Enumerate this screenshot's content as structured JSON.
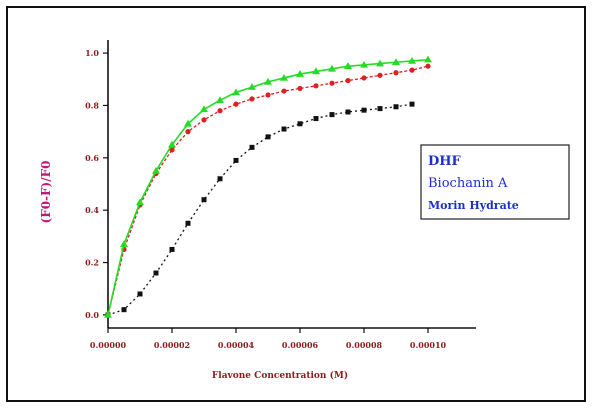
{
  "chart_data": {
    "type": "line",
    "title": "",
    "xlabel": "Flavone Concentration (M)",
    "ylabel": "(F0-F)/F0",
    "x_ticks": [
      "0.00000",
      "0.00002",
      "0.00004",
      "0.00006",
      "0.00008",
      "0.00010"
    ],
    "y_ticks": [
      "0.0",
      "0.2",
      "0.4",
      "0.6",
      "0.8",
      "1.0"
    ],
    "xlim": [
      0,
      0.000115
    ],
    "ylim": [
      -0.05,
      1.05
    ],
    "grid": false,
    "legend_position": "right",
    "series": [
      {
        "name": "DHF",
        "color": "#111111",
        "marker": "square",
        "x": [
          0,
          5e-06,
          1e-05,
          1.5e-05,
          2e-05,
          2.5e-05,
          3e-05,
          3.5e-05,
          4e-05,
          4.5e-05,
          5e-05,
          5.5e-05,
          6e-05,
          6.5e-05,
          7e-05,
          7.5e-05,
          8e-05,
          8.5e-05,
          9e-05,
          9.5e-05
        ],
        "y": [
          0.0,
          0.02,
          0.08,
          0.16,
          0.25,
          0.35,
          0.44,
          0.52,
          0.59,
          0.64,
          0.68,
          0.71,
          0.73,
          0.75,
          0.765,
          0.775,
          0.782,
          0.788,
          0.795,
          0.805
        ]
      },
      {
        "name": "Biochanin A",
        "color": "#e02020",
        "marker": "circle",
        "x": [
          0,
          5e-06,
          1e-05,
          1.5e-05,
          2e-05,
          2.5e-05,
          3e-05,
          3.5e-05,
          4e-05,
          4.5e-05,
          5e-05,
          5.5e-05,
          6e-05,
          6.5e-05,
          7e-05,
          7.5e-05,
          8e-05,
          8.5e-05,
          9e-05,
          9.5e-05,
          0.0001
        ],
        "y": [
          0.0,
          0.25,
          0.42,
          0.54,
          0.63,
          0.7,
          0.745,
          0.78,
          0.805,
          0.825,
          0.84,
          0.855,
          0.865,
          0.875,
          0.885,
          0.895,
          0.905,
          0.915,
          0.925,
          0.935,
          0.95
        ]
      },
      {
        "name": "Morin Hydrate",
        "color": "#22dd22",
        "marker": "triangle",
        "x": [
          0,
          5e-06,
          1e-05,
          1.5e-05,
          2e-05,
          2.5e-05,
          3e-05,
          3.5e-05,
          4e-05,
          4.5e-05,
          5e-05,
          5.5e-05,
          6e-05,
          6.5e-05,
          7e-05,
          7.5e-05,
          8e-05,
          8.5e-05,
          9e-05,
          9.5e-05,
          0.0001
        ],
        "y": [
          0.0,
          0.27,
          0.43,
          0.55,
          0.65,
          0.73,
          0.785,
          0.82,
          0.85,
          0.87,
          0.89,
          0.905,
          0.92,
          0.93,
          0.94,
          0.95,
          0.955,
          0.96,
          0.965,
          0.97,
          0.975
        ]
      }
    ]
  }
}
